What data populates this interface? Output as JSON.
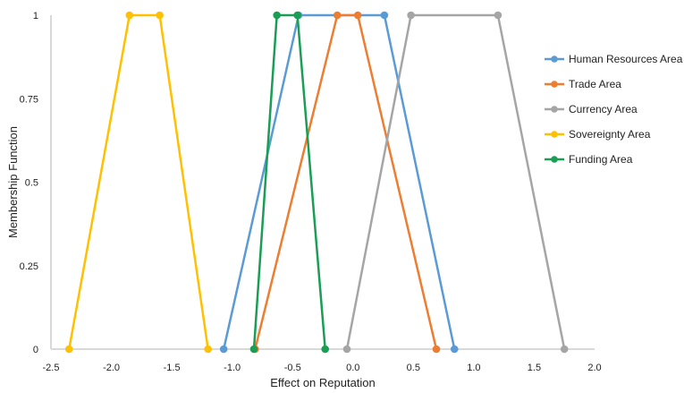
{
  "chart_data": {
    "type": "line",
    "title": "",
    "xlabel": "Effect on Reputation",
    "ylabel": "Membership Function",
    "xlim": [
      -2.5,
      2.0
    ],
    "ylim": [
      0,
      1
    ],
    "x_ticks": [
      "-2.5",
      "-2.0",
      "-1.5",
      "-1.0",
      "-0.5",
      "0.0",
      "0.5",
      "1.0",
      "1.5",
      "2.0"
    ],
    "y_ticks": [
      "0",
      "0.25",
      "0.5",
      "0.75",
      "1"
    ],
    "grid": false,
    "legend_position": "right",
    "series": [
      {
        "name": "Human Resources Area",
        "color": "#5b9bd5",
        "x": [
          -1.07,
          -0.45,
          0.26,
          0.84
        ],
        "y": [
          0,
          1,
          1,
          0
        ]
      },
      {
        "name": "Trade Area",
        "color": "#ed7d31",
        "x": [
          -0.81,
          -0.13,
          0.04,
          0.69
        ],
        "y": [
          0,
          1,
          1,
          0
        ]
      },
      {
        "name": "Currency Area",
        "color": "#a5a5a5",
        "x": [
          -0.05,
          0.48,
          1.2,
          1.75
        ],
        "y": [
          0,
          1,
          1,
          0
        ]
      },
      {
        "name": "Sovereignty Area",
        "color": "#ffc000",
        "x": [
          -2.35,
          -1.85,
          -1.6,
          -1.2
        ],
        "y": [
          0,
          1,
          1,
          0
        ]
      },
      {
        "name": "Funding Area",
        "color": "#1a9e55",
        "x": [
          -0.82,
          -0.63,
          -0.46,
          -0.23
        ],
        "y": [
          0,
          1,
          1,
          0
        ]
      }
    ]
  }
}
